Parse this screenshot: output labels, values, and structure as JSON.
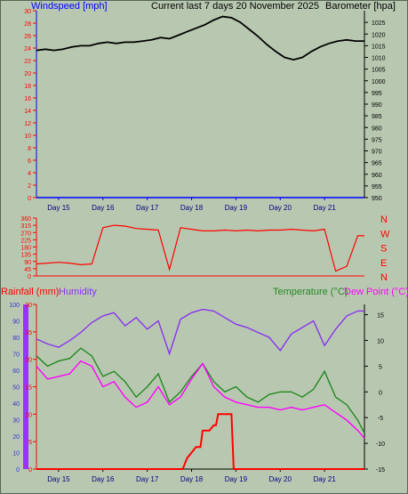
{
  "header": {
    "windspeed_label": "Windspeed [mph]",
    "title": "Current last 7 days 20 November 2025",
    "barometer_label": "Barometer [hpa]"
  },
  "days": [
    "Day 15",
    "Day 16",
    "Day 17",
    "Day 18",
    "Day 19",
    "Day 20",
    "Day 21"
  ],
  "colors": {
    "background": "#b8c8b0",
    "wind": "#0000ff",
    "barometer": "#000000",
    "wind_dir": "#ff0000",
    "rain": "#ff0000",
    "humidity": "#8833ee",
    "temperature": "#228822",
    "dew_point": "#ff00ff"
  },
  "chart_data": [
    {
      "type": "line",
      "title": "Current last 7 days 20 November 2025",
      "xlabel": "",
      "x_categories": [
        "Day 15",
        "Day 16",
        "Day 17",
        "Day 18",
        "Day 19",
        "Day 20",
        "Day 21"
      ],
      "axes": {
        "left": {
          "label": "Windspeed [mph]",
          "ylim": [
            0,
            30
          ],
          "ticks": [
            0,
            2,
            4,
            6,
            8,
            10,
            12,
            14,
            16,
            18,
            20,
            22,
            24,
            26,
            28,
            30
          ]
        },
        "right": {
          "label": "Barometer [hpa]",
          "ylim": [
            950,
            1030
          ],
          "ticks": [
            950,
            955,
            960,
            965,
            970,
            975,
            980,
            985,
            990,
            995,
            1000,
            1005,
            1010,
            1015,
            1020,
            1025
          ]
        }
      },
      "series": [
        {
          "name": "Barometer [hpa]",
          "axis": "right",
          "x": [
            0,
            0.2,
            0.4,
            0.6,
            0.8,
            1.0,
            1.2,
            1.4,
            1.6,
            1.8,
            2.0,
            2.2,
            2.4,
            2.6,
            2.8,
            3.0,
            3.2,
            3.4,
            3.6,
            3.8,
            4.0,
            4.2,
            4.4,
            4.6,
            4.8,
            5.0,
            5.2,
            5.4,
            5.6,
            5.8,
            6.0,
            6.2,
            6.4,
            6.6,
            6.8,
            7.0,
            7.2,
            7.4
          ],
          "values": [
            1013,
            1013.5,
            1013,
            1013.5,
            1014.5,
            1015,
            1015,
            1016,
            1016.5,
            1016,
            1016.5,
            1016.5,
            1017,
            1017.5,
            1018.5,
            1018,
            1019.5,
            1021,
            1022.5,
            1024,
            1026,
            1027.5,
            1027,
            1025,
            1022,
            1019,
            1015.5,
            1012.5,
            1010,
            1009,
            1010,
            1012.5,
            1014.5,
            1016,
            1017,
            1017.5,
            1017,
            1017
          ]
        },
        {
          "name": "Windspeed [mph]",
          "axis": "left",
          "x": [
            0,
            7.4
          ],
          "values": [
            0,
            0
          ]
        }
      ]
    },
    {
      "type": "line",
      "title": "",
      "x_categories": [
        "Day 15",
        "Day 16",
        "Day 17",
        "Day 18",
        "Day 19",
        "Day 20",
        "Day 21"
      ],
      "axes": {
        "left": {
          "label": "",
          "ylim": [
            0,
            360
          ],
          "ticks": [
            0,
            45,
            90,
            135,
            180,
            225,
            270,
            315,
            360
          ]
        },
        "right": {
          "label": "",
          "ticks_text": [
            "N",
            "W",
            "S",
            "E",
            "N"
          ]
        }
      },
      "series": [
        {
          "name": "Wind direction",
          "x": [
            0,
            0.25,
            0.5,
            0.75,
            1.0,
            1.25,
            1.5,
            1.75,
            2.0,
            2.25,
            2.5,
            2.75,
            3.0,
            3.25,
            3.5,
            3.75,
            4.0,
            4.25,
            4.5,
            4.75,
            5.0,
            5.25,
            5.5,
            5.75,
            6.0,
            6.25,
            6.5,
            6.75,
            7.0,
            7.25,
            7.4
          ],
          "values": [
            75,
            80,
            85,
            80,
            70,
            75,
            300,
            315,
            310,
            295,
            290,
            285,
            40,
            300,
            290,
            280,
            280,
            285,
            280,
            285,
            280,
            285,
            285,
            290,
            285,
            280,
            290,
            30,
            60,
            250,
            250
          ]
        }
      ]
    },
    {
      "type": "line",
      "title": "",
      "x_categories": [
        "Day 15",
        "Day 16",
        "Day 17",
        "Day 18",
        "Day 19",
        "Day 20",
        "Day 21"
      ],
      "axes": {
        "rainfall": {
          "label": "Rainfall (mm)",
          "ylim": [
            0,
            30
          ],
          "ticks": [
            0,
            5,
            10,
            15,
            20,
            25,
            30
          ]
        },
        "humidity": {
          "label": "Humidity",
          "ylim": [
            0,
            100
          ],
          "ticks": [
            0,
            10,
            20,
            30,
            40,
            50,
            60,
            70,
            80,
            90,
            100
          ]
        },
        "temperature": {
          "label": "Temperature (°C)",
          "ylim": [
            -15,
            17
          ],
          "ticks": [
            -15,
            -10,
            -5,
            0,
            5,
            10,
            15
          ]
        },
        "dew_point": {
          "label": "Dew Point (°C)"
        }
      },
      "series": [
        {
          "name": "Humidity",
          "axis": "humidity",
          "x": [
            0,
            0.25,
            0.5,
            0.75,
            1.0,
            1.25,
            1.5,
            1.75,
            2.0,
            2.25,
            2.5,
            2.75,
            3.0,
            3.25,
            3.5,
            3.75,
            4.0,
            4.25,
            4.5,
            4.75,
            5.0,
            5.25,
            5.5,
            5.75,
            6.0,
            6.25,
            6.5,
            6.75,
            7.0,
            7.25,
            7.4
          ],
          "values": [
            79,
            76,
            74,
            78,
            83,
            89,
            93,
            95,
            87,
            92,
            85,
            90,
            70,
            91,
            95,
            97,
            96,
            92,
            88,
            86,
            83,
            80,
            72,
            82,
            86,
            90,
            75,
            85,
            93,
            96,
            96
          ]
        },
        {
          "name": "Temperature (°C)",
          "axis": "temperature",
          "x": [
            0,
            0.25,
            0.5,
            0.75,
            1.0,
            1.25,
            1.5,
            1.75,
            2.0,
            2.25,
            2.5,
            2.75,
            3.0,
            3.25,
            3.5,
            3.75,
            4.0,
            4.25,
            4.5,
            4.75,
            5.0,
            5.25,
            5.5,
            5.75,
            6.0,
            6.25,
            6.5,
            6.75,
            7.0,
            7.25,
            7.4
          ],
          "values": [
            7,
            5,
            6,
            6.5,
            8.5,
            7,
            3,
            4,
            2,
            -1,
            1,
            3.5,
            -2,
            0,
            3,
            5.5,
            2,
            0,
            1,
            -1,
            -2,
            -0.5,
            0,
            0,
            -1,
            0.5,
            4,
            -1,
            -2.5,
            -5.5,
            -8
          ]
        },
        {
          "name": "Dew Point (°C)",
          "axis": "temperature",
          "x": [
            0,
            0.25,
            0.5,
            0.75,
            1.0,
            1.25,
            1.5,
            1.75,
            2.0,
            2.25,
            2.5,
            2.75,
            3.0,
            3.25,
            3.5,
            3.75,
            4.0,
            4.25,
            4.5,
            4.75,
            5.0,
            5.25,
            5.5,
            5.75,
            6.0,
            6.25,
            6.5,
            6.75,
            7.0,
            7.25,
            7.4
          ],
          "values": [
            5,
            2.5,
            3,
            3.5,
            6,
            5,
            1,
            2,
            -1,
            -3,
            -2,
            1,
            -2.5,
            -1,
            2.5,
            5.5,
            1,
            -1,
            -2,
            -2.5,
            -3,
            -3,
            -3.5,
            -3,
            -3.5,
            -3,
            -2.5,
            -4,
            -5.5,
            -7.5,
            -9
          ]
        },
        {
          "name": "Rainfall (mm)",
          "axis": "rainfall",
          "x": [
            0,
            3.3,
            3.35,
            3.4,
            3.5,
            3.6,
            3.7,
            3.75,
            3.9,
            4.0,
            4.05,
            4.1,
            4.4,
            4.45,
            7.4
          ],
          "values": [
            0,
            0,
            1,
            2,
            3,
            4,
            4,
            7,
            7,
            8,
            8,
            10,
            10,
            0,
            0
          ]
        }
      ]
    }
  ]
}
